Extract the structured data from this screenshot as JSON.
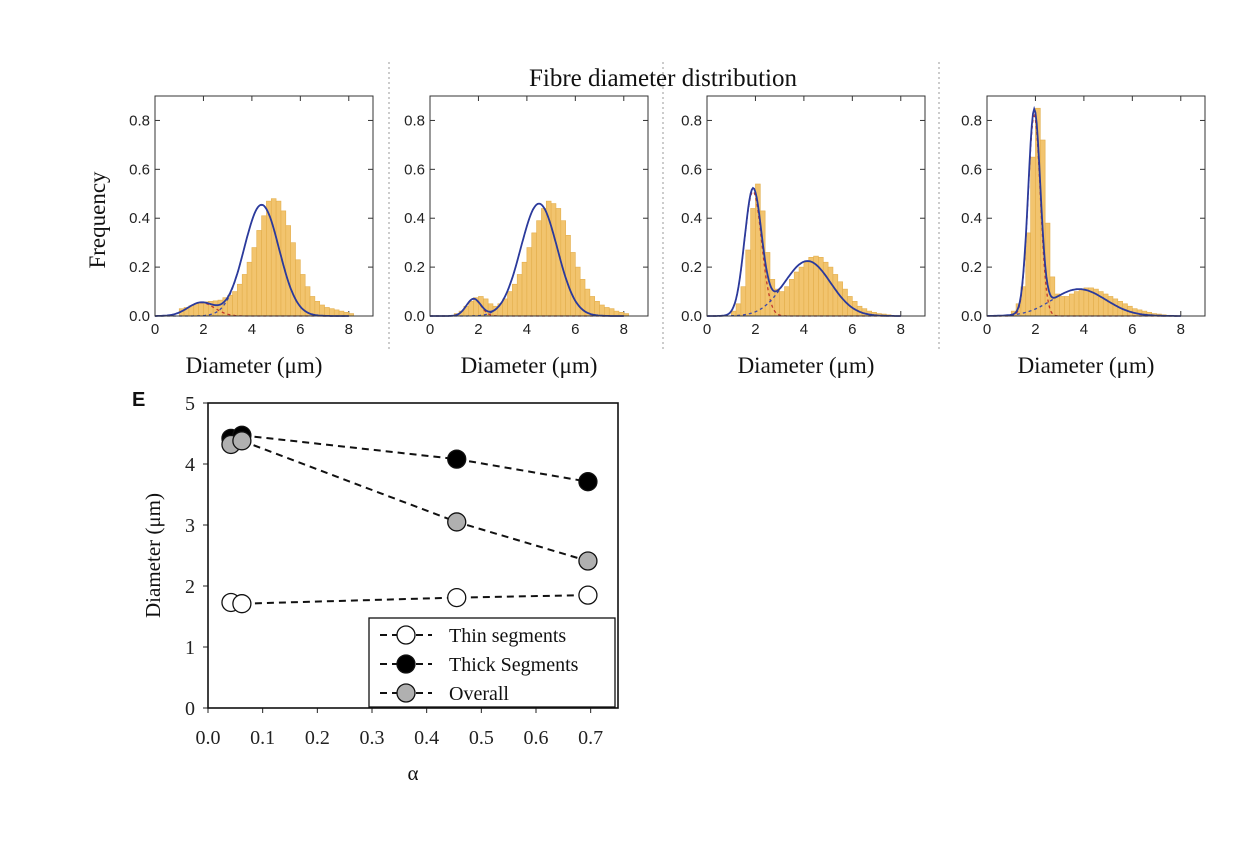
{
  "figure_title": "Fibre diameter distribution",
  "panel_letter": "E",
  "colors": {
    "bar_fill": "#f2c46e",
    "bar_edge": "#e3ae4c",
    "fit_total": "#2b3a9c",
    "fit_thin": "#c0392b",
    "fit_thick": "#3949ab",
    "marker_thin": "#ffffff",
    "marker_thick": "#000000",
    "marker_overall": "#b0b0b0"
  },
  "chart_data": [
    {
      "type": "bar",
      "overlay": "gaussian mixture fit",
      "xlabel": "Diameter (μm)",
      "ylabel": "Frequency",
      "xlim": [
        0,
        9
      ],
      "ylim": [
        0,
        0.9
      ],
      "xticks": [
        "0",
        "2",
        "4",
        "6",
        "8"
      ],
      "yticks": [
        "0.0",
        "0.2",
        "0.4",
        "0.6",
        "0.8"
      ],
      "components": [
        {
          "mean": 1.9,
          "sd": 0.55,
          "peak": 0.055
        },
        {
          "mean": 4.4,
          "sd": 0.72,
          "peak": 0.455
        }
      ],
      "bins": {
        "start": 1.0,
        "width": 0.2,
        "count": 36
      },
      "values": [
        0.03,
        0.035,
        0.042,
        0.05,
        0.055,
        0.058,
        0.06,
        0.062,
        0.065,
        0.075,
        0.085,
        0.1,
        0.13,
        0.17,
        0.22,
        0.28,
        0.35,
        0.41,
        0.47,
        0.48,
        0.47,
        0.43,
        0.37,
        0.3,
        0.23,
        0.17,
        0.12,
        0.08,
        0.06,
        0.045,
        0.035,
        0.03,
        0.025,
        0.02,
        0.015,
        0.01
      ]
    },
    {
      "type": "bar",
      "overlay": "gaussian mixture fit",
      "xlabel": "Diameter (μm)",
      "ylabel": "",
      "xlim": [
        0,
        9
      ],
      "ylim": [
        0,
        0.9
      ],
      "xticks": [
        "0",
        "2",
        "4",
        "6",
        "8"
      ],
      "yticks": [
        "0.0",
        "0.2",
        "0.4",
        "0.6",
        "0.8"
      ],
      "components": [
        {
          "mean": 1.8,
          "sd": 0.3,
          "peak": 0.07
        },
        {
          "mean": 4.5,
          "sd": 0.75,
          "peak": 0.46
        }
      ],
      "bins": {
        "start": 1.0,
        "width": 0.2,
        "count": 36
      },
      "values": [
        0.01,
        0.02,
        0.04,
        0.06,
        0.075,
        0.08,
        0.07,
        0.05,
        0.04,
        0.05,
        0.07,
        0.1,
        0.13,
        0.17,
        0.22,
        0.28,
        0.34,
        0.39,
        0.44,
        0.47,
        0.46,
        0.44,
        0.39,
        0.33,
        0.26,
        0.2,
        0.15,
        0.11,
        0.08,
        0.06,
        0.045,
        0.035,
        0.03,
        0.02,
        0.015,
        0.01
      ]
    },
    {
      "type": "bar",
      "overlay": "gaussian mixture fit",
      "xlabel": "Diameter (μm)",
      "ylabel": "",
      "xlim": [
        0,
        9
      ],
      "ylim": [
        0,
        0.9
      ],
      "xticks": [
        "0",
        "2",
        "4",
        "6",
        "8"
      ],
      "yticks": [
        "0.0",
        "0.2",
        "0.4",
        "0.6",
        "0.8"
      ],
      "components": [
        {
          "mean": 1.9,
          "sd": 0.35,
          "peak": 0.51
        },
        {
          "mean": 4.15,
          "sd": 0.95,
          "peak": 0.225
        }
      ],
      "bins": {
        "start": 1.0,
        "width": 0.2,
        "count": 33
      },
      "values": [
        0.02,
        0.05,
        0.12,
        0.27,
        0.44,
        0.54,
        0.43,
        0.26,
        0.15,
        0.11,
        0.1,
        0.12,
        0.15,
        0.18,
        0.2,
        0.22,
        0.24,
        0.245,
        0.24,
        0.22,
        0.2,
        0.17,
        0.14,
        0.11,
        0.08,
        0.06,
        0.04,
        0.03,
        0.02,
        0.015,
        0.01,
        0.008,
        0.005
      ]
    },
    {
      "type": "bar",
      "overlay": "gaussian mixture fit",
      "xlabel": "Diameter (μm)",
      "ylabel": "",
      "xlim": [
        0,
        9
      ],
      "ylim": [
        0,
        0.9
      ],
      "xticks": [
        "0",
        "2",
        "4",
        "6",
        "8"
      ],
      "yticks": [
        "0.0",
        "0.2",
        "0.4",
        "0.6",
        "0.8"
      ],
      "components": [
        {
          "mean": 1.95,
          "sd": 0.25,
          "peak": 0.82
        },
        {
          "mean": 3.8,
          "sd": 1.1,
          "peak": 0.11
        }
      ],
      "bins": {
        "start": 1.0,
        "width": 0.2,
        "count": 33
      },
      "values": [
        0.02,
        0.05,
        0.12,
        0.34,
        0.65,
        0.85,
        0.72,
        0.38,
        0.16,
        0.09,
        0.08,
        0.08,
        0.09,
        0.1,
        0.11,
        0.115,
        0.115,
        0.11,
        0.1,
        0.09,
        0.08,
        0.07,
        0.06,
        0.05,
        0.04,
        0.03,
        0.025,
        0.02,
        0.015,
        0.01,
        0.008,
        0.005,
        0.003
      ]
    },
    {
      "type": "scatter",
      "lines": "dashed",
      "xlabel": "α",
      "ylabel": "Diameter (μm)",
      "xlim": [
        0,
        0.75
      ],
      "ylim": [
        0,
        5
      ],
      "xticks": [
        "0.0",
        "0.1",
        "0.2",
        "0.3",
        "0.4",
        "0.5",
        "0.6",
        "0.7"
      ],
      "yticks": [
        "0",
        "1",
        "2",
        "3",
        "4",
        "5"
      ],
      "legend_position": "bottom-right",
      "series": [
        {
          "name": "Thin segments",
          "style": "open",
          "points": [
            [
              0.042,
              1.73
            ],
            [
              0.062,
              1.71
            ],
            [
              0.455,
              1.81
            ],
            [
              0.695,
              1.85
            ]
          ]
        },
        {
          "name": "Thick Segments",
          "style": "filled-black",
          "points": [
            [
              0.042,
              4.42
            ],
            [
              0.062,
              4.47
            ],
            [
              0.455,
              4.08
            ],
            [
              0.695,
              3.71
            ]
          ]
        },
        {
          "name": "Overall",
          "style": "filled-gray",
          "points": [
            [
              0.042,
              4.32
            ],
            [
              0.062,
              4.38
            ],
            [
              0.455,
              3.05
            ],
            [
              0.695,
              2.41
            ]
          ]
        }
      ]
    }
  ]
}
